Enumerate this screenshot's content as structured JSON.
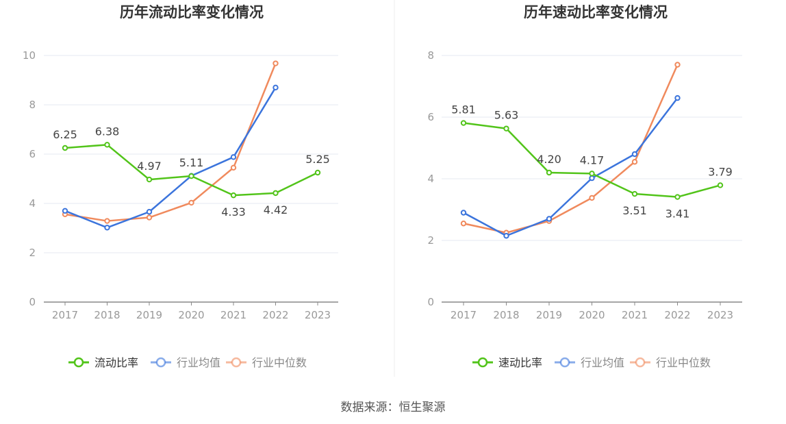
{
  "chart_data": [
    {
      "type": "line",
      "title": "历年流动比率变化情况",
      "categories": [
        "2017",
        "2018",
        "2019",
        "2020",
        "2021",
        "2022",
        "2023"
      ],
      "ylim": [
        0,
        10
      ],
      "yticks": [
        0,
        2,
        4,
        6,
        8,
        10
      ],
      "grid": true,
      "legend_position": "bottom",
      "series": [
        {
          "name": "流动比率",
          "color": "#52c41a",
          "values": [
            6.25,
            6.38,
            4.97,
            5.11,
            4.33,
            4.42,
            5.25
          ],
          "labels": [
            "6.25",
            "6.38",
            "4.97",
            "5.11",
            "4.33",
            "4.42",
            "5.25"
          ]
        },
        {
          "name": "行业均值",
          "color": "#3b74dc",
          "values": [
            3.7,
            3.02,
            3.66,
            5.12,
            5.88,
            8.7,
            null
          ]
        },
        {
          "name": "行业中位数",
          "color": "#f08a5d",
          "values": [
            3.56,
            3.29,
            3.43,
            4.03,
            5.45,
            9.68,
            null
          ]
        }
      ]
    },
    {
      "type": "line",
      "title": "历年速动比率变化情况",
      "categories": [
        "2017",
        "2018",
        "2019",
        "2020",
        "2021",
        "2022",
        "2023"
      ],
      "ylim": [
        0,
        8
      ],
      "yticks": [
        0,
        2,
        4,
        6,
        8
      ],
      "grid": true,
      "legend_position": "bottom",
      "series": [
        {
          "name": "速动比率",
          "color": "#52c41a",
          "values": [
            5.81,
            5.63,
            4.2,
            4.17,
            3.51,
            3.41,
            3.79
          ],
          "labels": [
            "5.81",
            "5.63",
            "4.20",
            "4.17",
            "3.51",
            "3.41",
            "3.79"
          ]
        },
        {
          "name": "行业均值",
          "color": "#3b74dc",
          "values": [
            2.9,
            2.15,
            2.7,
            4.02,
            4.8,
            6.62,
            null
          ]
        },
        {
          "name": "行业中位数",
          "color": "#f08a5d",
          "values": [
            2.55,
            2.25,
            2.63,
            3.38,
            4.55,
            7.7,
            null
          ]
        }
      ]
    }
  ],
  "source": "数据来源：恒生聚源"
}
